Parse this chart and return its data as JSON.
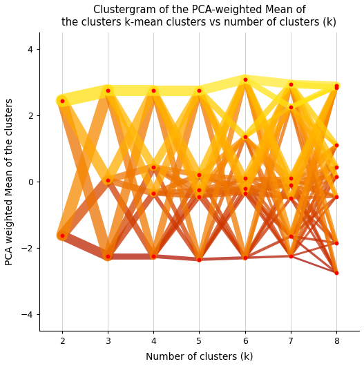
{
  "title_line1": "Clustergram of the PCA-weighted Mean of",
  "title_line2": "the clusters k-mean clusters vs number of clusters (k)",
  "xlabel": "Number of clusters (k)",
  "ylabel": "PCA weighted Mean of the clusters",
  "xlim": [
    1.5,
    8.5
  ],
  "ylim": [
    -4.5,
    4.5
  ],
  "xticks": [
    2,
    3,
    4,
    5,
    6,
    7,
    8
  ],
  "yticks": [
    -4,
    -2,
    0,
    2,
    4
  ],
  "background_color": "#ffffff",
  "dot_color": "#ff0000",
  "dot_size": 18,
  "cluster_values": {
    "2": [
      2.45,
      -1.62
    ],
    "3": [
      2.75,
      0.05,
      -2.25
    ],
    "4": [
      2.75,
      0.45,
      -0.35,
      -2.25
    ],
    "5": [
      2.75,
      0.2,
      -0.25,
      -0.45,
      -2.35
    ],
    "6": [
      3.1,
      1.35,
      0.1,
      -0.2,
      -0.35,
      -2.3
    ],
    "7": [
      2.95,
      2.25,
      0.1,
      -0.1,
      -0.5,
      -1.65,
      -2.25
    ],
    "8": [
      2.9,
      2.85,
      1.1,
      0.45,
      0.15,
      -0.45,
      -1.85,
      -2.75
    ]
  },
  "cluster_sizes": {
    "2": [
      0.55,
      0.45
    ],
    "3": [
      0.42,
      0.3,
      0.28
    ],
    "4": [
      0.4,
      0.22,
      0.2,
      0.18
    ],
    "5": [
      0.38,
      0.18,
      0.17,
      0.15,
      0.12
    ],
    "6": [
      0.35,
      0.15,
      0.14,
      0.13,
      0.12,
      0.11
    ],
    "7": [
      0.33,
      0.14,
      0.13,
      0.12,
      0.11,
      0.1,
      0.07
    ],
    "8": [
      0.3,
      0.13,
      0.12,
      0.11,
      0.1,
      0.09,
      0.08,
      0.07
    ]
  }
}
